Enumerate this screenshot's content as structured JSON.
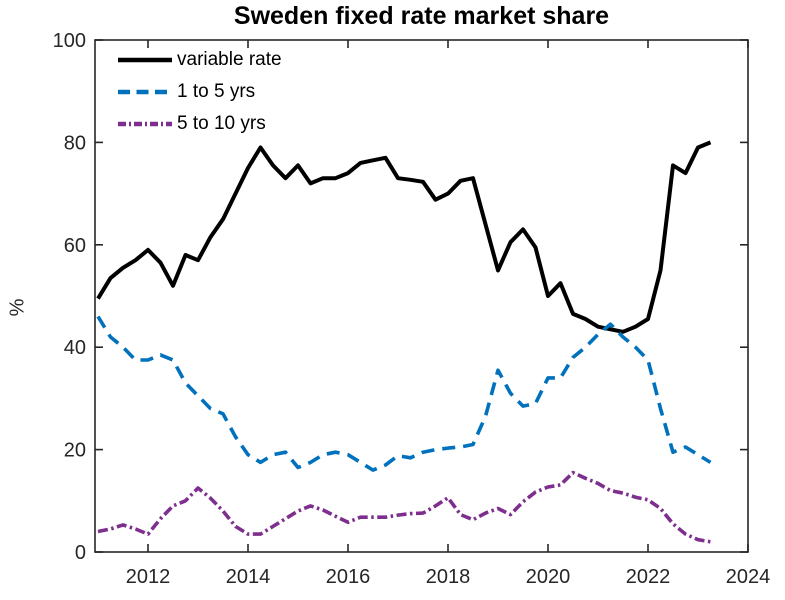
{
  "title": "Sweden fixed rate market share",
  "chart_data": {
    "type": "line",
    "title": "Sweden fixed rate market share",
    "xlabel": "",
    "ylabel": "%",
    "xlim": [
      2010.94,
      2024
    ],
    "ylim": [
      0,
      100
    ],
    "x_ticks": [
      2012,
      2014,
      2016,
      2018,
      2020,
      2022,
      2024
    ],
    "y_ticks": [
      0,
      20,
      40,
      60,
      80,
      100
    ],
    "grid": false,
    "legend_position": "inside top-left, no box",
    "x": [
      2011.0,
      2011.25,
      2011.5,
      2011.75,
      2012.0,
      2012.25,
      2012.5,
      2012.75,
      2013.0,
      2013.25,
      2013.5,
      2013.75,
      2014.0,
      2014.25,
      2014.5,
      2014.75,
      2015.0,
      2015.25,
      2015.5,
      2015.75,
      2016.0,
      2016.25,
      2016.5,
      2016.75,
      2017.0,
      2017.25,
      2017.5,
      2017.75,
      2018.0,
      2018.25,
      2018.5,
      2018.75,
      2019.0,
      2019.25,
      2019.5,
      2019.75,
      2020.0,
      2020.25,
      2020.5,
      2020.75,
      2021.0,
      2021.25,
      2021.5,
      2021.75,
      2022.0,
      2022.25,
      2022.5,
      2022.75,
      2023.0,
      2023.25
    ],
    "series": [
      {
        "name": "variable rate",
        "color": "#000000",
        "line_style": "solid",
        "values": [
          49.5,
          53.5,
          55.5,
          57,
          59,
          56.5,
          52,
          58,
          57,
          61.5,
          65,
          70,
          75,
          79,
          75.5,
          73,
          75.5,
          72,
          73,
          73,
          74,
          76,
          76.5,
          77,
          73,
          72.7,
          72.3,
          68.8,
          70,
          72.5,
          73,
          64,
          55,
          60.5,
          63,
          59.5,
          50,
          52.5,
          46.5,
          45.5,
          44,
          43.5,
          43,
          44,
          45.5,
          55,
          75.5,
          74,
          79,
          80
        ]
      },
      {
        "name": "1 to 5 yrs",
        "color": "#0072BD",
        "line_style": "dashed",
        "values": [
          46,
          42,
          40,
          37.5,
          37.5,
          38.5,
          37.5,
          33,
          30.5,
          28,
          27,
          22.5,
          19,
          17.5,
          19,
          19.5,
          16.5,
          17.5,
          19,
          19.5,
          19,
          17.5,
          16,
          17,
          18.8,
          18.4,
          19.5,
          20,
          20.3,
          20.5,
          21,
          26.5,
          35.5,
          31,
          28.5,
          29,
          34,
          34,
          38,
          40,
          42.5,
          44.5,
          42,
          40,
          37.5,
          28,
          19.5,
          20.5,
          19,
          17.5
        ]
      },
      {
        "name": "5 to 10 yrs",
        "color": "#7E2F8E",
        "line_style": "dash-dot",
        "values": [
          4,
          4.5,
          5.3,
          4.5,
          3.5,
          6.5,
          9,
          10,
          12.5,
          10.5,
          8,
          5,
          3.5,
          3.5,
          5,
          6.5,
          8,
          9,
          8.2,
          7,
          5.8,
          6.8,
          6.8,
          6.8,
          7.2,
          7.5,
          7.6,
          9,
          10.6,
          7.3,
          6.3,
          7.6,
          8.5,
          7.3,
          9.8,
          11.7,
          12.7,
          13.1,
          15.5,
          14.4,
          13.4,
          12,
          11.5,
          10.7,
          10.2,
          8.5,
          5.5,
          3.5,
          2.4,
          2
        ]
      }
    ],
    "axis_color": "#262626",
    "tick_label_color": "#262626"
  }
}
